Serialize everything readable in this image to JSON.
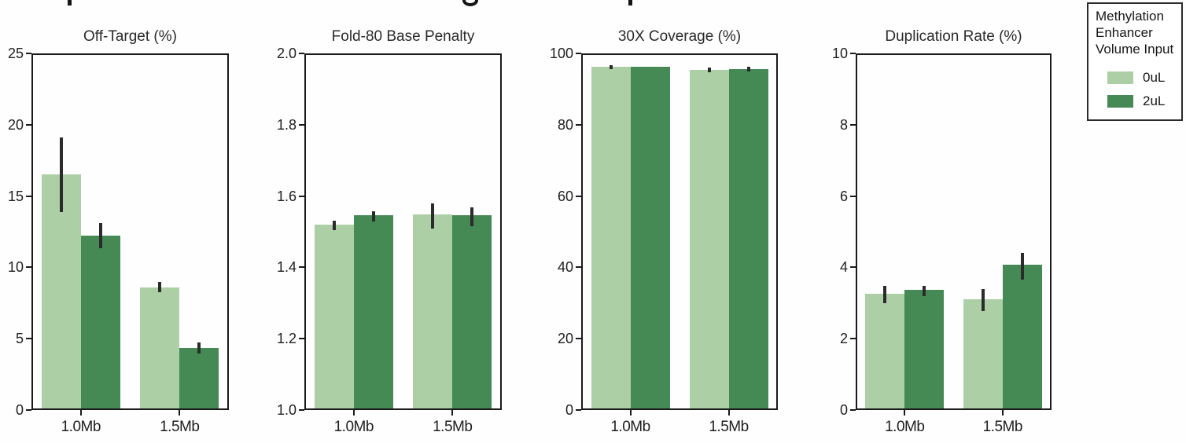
{
  "figure": {
    "cropped_title_marks": [
      {
        "x": 86,
        "shape": "stem"
      },
      {
        "x": 588,
        "shape": "bowl"
      },
      {
        "x": 799,
        "shape": "stem"
      }
    ]
  },
  "legend": {
    "title_lines": [
      "Methylation",
      "Enhancer",
      "Volume Input"
    ],
    "entries": [
      {
        "label": "0uL",
        "color": "#adcfa6"
      },
      {
        "label": "2uL",
        "color": "#458955"
      }
    ],
    "position": "figure-top-right"
  },
  "chart_data": [
    {
      "type": "bar",
      "title": "Off-Target (%)",
      "categories": [
        "1.0Mb",
        "1.5Mb"
      ],
      "series": [
        {
          "name": "0uL",
          "color": "#adcfa6",
          "values": [
            16.5,
            8.6
          ],
          "error_ranges": [
            [
              13.9,
              19.1
            ],
            [
              8.25,
              8.95
            ]
          ]
        },
        {
          "name": "2uL",
          "color": "#458955",
          "values": [
            12.2,
            4.35
          ],
          "error_ranges": [
            [
              11.35,
              13.1
            ],
            [
              3.95,
              4.75
            ]
          ]
        }
      ],
      "ylim": [
        0,
        25
      ],
      "yticks": [
        0,
        5,
        10,
        15,
        20,
        25
      ],
      "ytick_labels": [
        "0",
        "5",
        "10",
        "15",
        "20",
        "25"
      ],
      "grid": false
    },
    {
      "type": "bar",
      "title": "Fold-80 Base Penalty",
      "categories": [
        "1.0Mb",
        "1.5Mb"
      ],
      "series": [
        {
          "name": "0uL",
          "color": "#adcfa6",
          "values": [
            1.52,
            1.548
          ],
          "error_ranges": [
            [
              1.505,
              1.53
            ],
            [
              1.509,
              1.58
            ]
          ]
        },
        {
          "name": "2uL",
          "color": "#458955",
          "values": [
            1.546,
            1.546
          ],
          "error_ranges": [
            [
              1.528,
              1.557
            ],
            [
              1.516,
              1.569
            ]
          ]
        }
      ],
      "ylim": [
        1.0,
        2.0
      ],
      "yticks": [
        1.0,
        1.2,
        1.4,
        1.6,
        1.8,
        2.0
      ],
      "ytick_labels": [
        "1.0",
        "1.2",
        "1.4",
        "1.6",
        "1.8",
        "2.0"
      ],
      "grid": false
    },
    {
      "type": "bar",
      "title": "30X Coverage (%)",
      "categories": [
        "1.0Mb",
        "1.5Mb"
      ],
      "series": [
        {
          "name": "0uL",
          "color": "#adcfa6",
          "values": [
            96.2,
            95.4
          ],
          "error_ranges": [
            [
              95.7,
              96.7
            ],
            [
              94.8,
              96.1
            ]
          ]
        },
        {
          "name": "2uL",
          "color": "#458955",
          "values": [
            96.2,
            95.6
          ],
          "error_ranges": [
            [
              96.2,
              96.2
            ],
            [
              95.0,
              96.2
            ]
          ]
        }
      ],
      "ylim": [
        0,
        100
      ],
      "yticks": [
        0,
        20,
        40,
        60,
        80,
        100
      ],
      "ytick_labels": [
        "0",
        "20",
        "40",
        "60",
        "80",
        "100"
      ],
      "grid": false
    },
    {
      "type": "bar",
      "title": "Duplication Rate (%)",
      "categories": [
        "1.0Mb",
        "1.5Mb"
      ],
      "series": [
        {
          "name": "0uL",
          "color": "#adcfa6",
          "values": [
            3.27,
            3.1
          ],
          "error_ranges": [
            [
              3.0,
              3.47
            ],
            [
              2.77,
              3.4
            ]
          ]
        },
        {
          "name": "2uL",
          "color": "#458955",
          "values": [
            3.37,
            4.07
          ],
          "error_ranges": [
            [
              3.2,
              3.47
            ],
            [
              3.65,
              4.4
            ]
          ]
        }
      ],
      "ylim": [
        0,
        10
      ],
      "yticks": [
        0,
        2,
        4,
        6,
        8,
        10
      ],
      "ytick_labels": [
        "0",
        "2",
        "4",
        "6",
        "8",
        "10"
      ],
      "grid": false
    }
  ]
}
